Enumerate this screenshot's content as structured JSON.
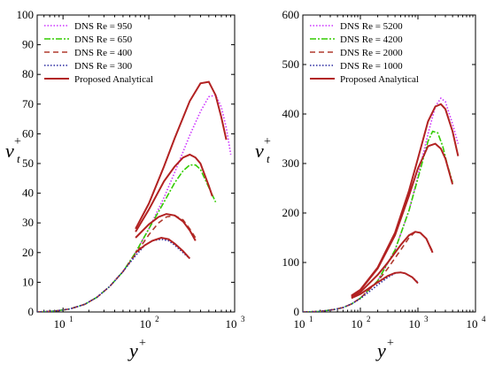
{
  "chart_data": [
    {
      "type": "line",
      "xscale": "log",
      "xlim": [
        5,
        1000
      ],
      "ylim": [
        0,
        100
      ],
      "xticks": [
        {
          "v": 10,
          "b": "10",
          "e": "1"
        },
        {
          "v": 100,
          "b": "10",
          "e": "2"
        },
        {
          "v": 1000,
          "b": "10",
          "e": "3"
        }
      ],
      "yticks": [
        0,
        10,
        20,
        30,
        40,
        50,
        60,
        70,
        80,
        90,
        100
      ],
      "xlabel": {
        "base": "y",
        "sup": "+"
      },
      "ylabel": {
        "base": "ν",
        "sup": "+",
        "sub": "t"
      },
      "legend": {
        "position": "top-left"
      },
      "series": [
        {
          "name": "DNS Re = 950",
          "color": "#cc33ff",
          "dash": "1.5,2",
          "x": [
            5,
            8,
            12,
            18,
            25,
            35,
            50,
            70,
            100,
            150,
            200,
            300,
            400,
            500,
            600,
            700,
            800,
            900
          ],
          "y": [
            0,
            0.3,
            1,
            2.6,
            5,
            8.6,
            13.6,
            20,
            28,
            38.5,
            47,
            59.5,
            67.5,
            72.5,
            73,
            69,
            62,
            53
          ]
        },
        {
          "name": "DNS Re = 650",
          "color": "#33cc00",
          "dash": "7,2,2,2",
          "x": [
            5,
            8,
            12,
            18,
            25,
            35,
            50,
            70,
            100,
            150,
            200,
            250,
            300,
            350,
            400,
            500,
            600
          ],
          "y": [
            0,
            0.3,
            1,
            2.6,
            5,
            8.6,
            13.6,
            20,
            28,
            37,
            43.5,
            47.5,
            49.5,
            49.5,
            48,
            42,
            37
          ]
        },
        {
          "name": "DNS Re = 400",
          "color": "#b03a2e",
          "dash": "6,4",
          "x": [
            5,
            8,
            12,
            18,
            25,
            35,
            50,
            70,
            100,
            130,
            160,
            200,
            250,
            300,
            350
          ],
          "y": [
            0,
            0.3,
            1,
            2.6,
            5,
            8.6,
            13.6,
            19.5,
            26,
            30,
            32,
            32.5,
            31,
            28,
            25
          ]
        },
        {
          "name": "DNS Re = 300",
          "color": "#2a2aa0",
          "dash": "1.5,2",
          "x": [
            5,
            8,
            12,
            18,
            25,
            35,
            50,
            70,
            90,
            110,
            140,
            170,
            200,
            250,
            300
          ],
          "y": [
            0,
            0.3,
            1,
            2.6,
            5,
            8.6,
            13.6,
            19,
            22.5,
            24,
            24.5,
            24,
            22.5,
            20,
            18
          ]
        },
        {
          "name": "Proposed Analytical",
          "color": "#b22222",
          "dash": "",
          "width": 2,
          "segments": [
            {
              "x": [
                70,
                100,
                150,
                200,
                300,
                400,
                500,
                600,
                700,
                800
              ],
              "y": [
                28,
                36.5,
                49,
                58.5,
                71,
                77,
                77.5,
                73,
                65.5,
                58
              ]
            },
            {
              "x": [
                70,
                100,
                150,
                200,
                250,
                300,
                350,
                400,
                500,
                550
              ],
              "y": [
                27,
                34.5,
                44,
                49,
                52,
                53,
                52,
                50,
                42.5,
                39
              ]
            },
            {
              "x": [
                70,
                100,
                130,
                160,
                200,
                250,
                300,
                350
              ],
              "y": [
                25,
                29.5,
                32,
                33,
                32.5,
                30.5,
                27.5,
                24
              ]
            },
            {
              "x": [
                70,
                90,
                110,
                140,
                170,
                200,
                250,
                300
              ],
              "y": [
                20,
                22.5,
                24,
                25,
                24.5,
                23,
                20.5,
                18
              ]
            }
          ]
        }
      ]
    },
    {
      "type": "line",
      "xscale": "log",
      "xlim": [
        10,
        10000
      ],
      "ylim": [
        0,
        600
      ],
      "xticks": [
        {
          "v": 10,
          "b": "10",
          "e": "1"
        },
        {
          "v": 100,
          "b": "10",
          "e": "2"
        },
        {
          "v": 1000,
          "b": "10",
          "e": "3"
        },
        {
          "v": 10000,
          "b": "10",
          "e": "4"
        }
      ],
      "yticks": [
        0,
        100,
        200,
        300,
        400,
        500,
        600
      ],
      "xlabel": {
        "base": "y",
        "sup": "+"
      },
      "ylabel": {
        "base": "ν",
        "sup": "+",
        "sub": "t"
      },
      "legend": {
        "position": "top-left"
      },
      "series": [
        {
          "name": "DNS Re = 5200",
          "color": "#cc33ff",
          "dash": "1.5,2",
          "x": [
            10,
            20,
            35,
            50,
            70,
            100,
            200,
            400,
            700,
            1000,
            1500,
            2000,
            2500,
            3000,
            4000,
            5000
          ],
          "y": [
            0,
            1,
            5,
            9,
            16,
            28,
            63,
            125,
            205,
            275,
            360,
            415,
            432,
            425,
            380,
            340
          ]
        },
        {
          "name": "DNS Re = 4200",
          "color": "#33cc00",
          "dash": "7,2,2,2",
          "x": [
            10,
            20,
            35,
            50,
            70,
            100,
            200,
            400,
            700,
            1000,
            1500,
            1800,
            2200,
            2700,
            3200,
            4000
          ],
          "y": [
            0,
            1,
            5,
            9,
            16,
            28,
            63,
            125,
            205,
            270,
            345,
            365,
            362,
            335,
            300,
            262
          ]
        },
        {
          "name": "DNS Re = 2000",
          "color": "#b03a2e",
          "dash": "6,4",
          "x": [
            10,
            20,
            35,
            50,
            70,
            100,
            200,
            300,
            500,
            700,
            900,
            1100,
            1400,
            1800
          ],
          "y": [
            0,
            1,
            5,
            9,
            16,
            28,
            62,
            88,
            125,
            150,
            162,
            160,
            148,
            122
          ]
        },
        {
          "name": "DNS Re = 1000",
          "color": "#2a2aa0",
          "dash": "1.5,2",
          "x": [
            10,
            20,
            35,
            50,
            70,
            100,
            150,
            200,
            300,
            400,
            500,
            600,
            800,
            1000
          ],
          "y": [
            0,
            1,
            5,
            9,
            16,
            27,
            43,
            55,
            70,
            78,
            80,
            78,
            70,
            60
          ]
        }
      ],
      "analytical": {
        "name": "Proposed Analytical",
        "color": "#b22222",
        "width": 2,
        "segments": [
          {
            "x": [
              70,
              100,
              200,
              400,
              700,
              1000,
              1500,
              2000,
              2500,
              3000,
              4000,
              5000
            ],
            "y": [
              33,
              45,
              90,
              160,
              245,
              310,
              385,
              415,
              420,
              410,
              365,
              315
            ]
          },
          {
            "x": [
              70,
              100,
              200,
              400,
              700,
              1000,
              1500,
              2000,
              2500,
              3000,
              4000
            ],
            "y": [
              32,
              44,
              88,
              155,
              235,
              290,
              335,
              340,
              330,
              310,
              258
            ]
          },
          {
            "x": [
              70,
              100,
              200,
              300,
              500,
              700,
              900,
              1100,
              1400,
              1800
            ],
            "y": [
              30,
              40,
              75,
              100,
              135,
              155,
              162,
              160,
              148,
              120
            ]
          },
          {
            "x": [
              70,
              100,
              150,
              200,
              300,
              400,
              500,
              600,
              800,
              1000
            ],
            "y": [
              28,
              36,
              50,
              60,
              73,
              79,
              80,
              78,
              70,
              58
            ]
          }
        ]
      }
    }
  ]
}
